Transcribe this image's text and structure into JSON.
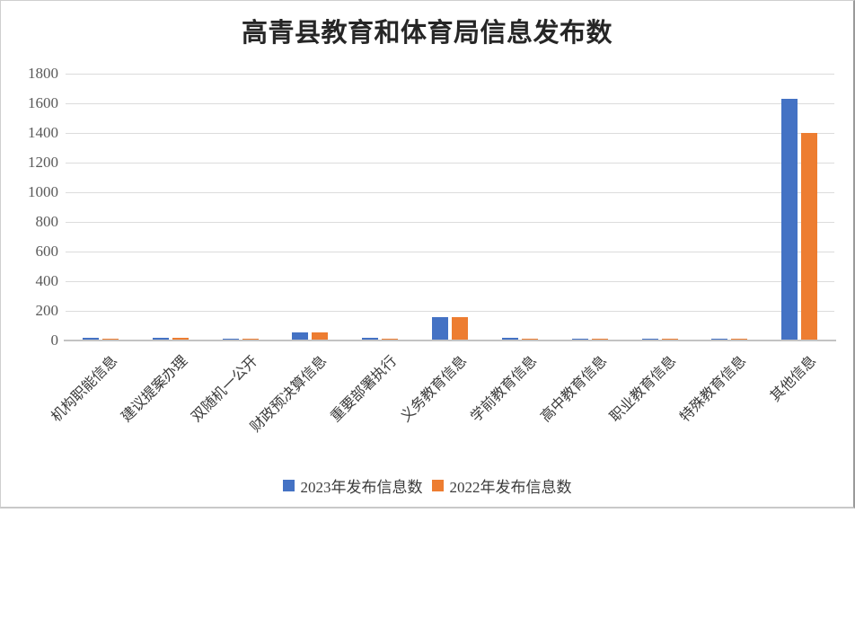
{
  "chart_data": {
    "type": "bar",
    "title": "高青县教育和体育局信息发布数",
    "categories": [
      "机构职能信息",
      "建议提案办理",
      "双随机一公开",
      "财政预决算信息",
      "重要部署执行",
      "义务教育信息",
      "学前教育信息",
      "高中教育信息",
      "职业教育信息",
      "特殊教育信息",
      "其他信息"
    ],
    "series": [
      {
        "name": "2023年发布信息数",
        "color": "#4472C4",
        "values": [
          20,
          20,
          12,
          55,
          18,
          160,
          20,
          12,
          10,
          12,
          1630
        ]
      },
      {
        "name": "2022年发布信息数",
        "color": "#ED7D31",
        "values": [
          10,
          18,
          8,
          55,
          12,
          160,
          10,
          10,
          12,
          10,
          1400
        ]
      }
    ],
    "xlabel": "",
    "ylabel": "",
    "ylim": [
      0,
      1800
    ],
    "yticks": [
      0,
      200,
      400,
      600,
      800,
      1000,
      1200,
      1400,
      1600,
      1800
    ],
    "grid": true,
    "legend_position": "bottom",
    "colors": {
      "grid": "#dcdcdc",
      "axis_line": "#c3c3c3",
      "tick_text": "#595959",
      "category_text": "#3b3b3b",
      "title_text": "#262626"
    }
  }
}
